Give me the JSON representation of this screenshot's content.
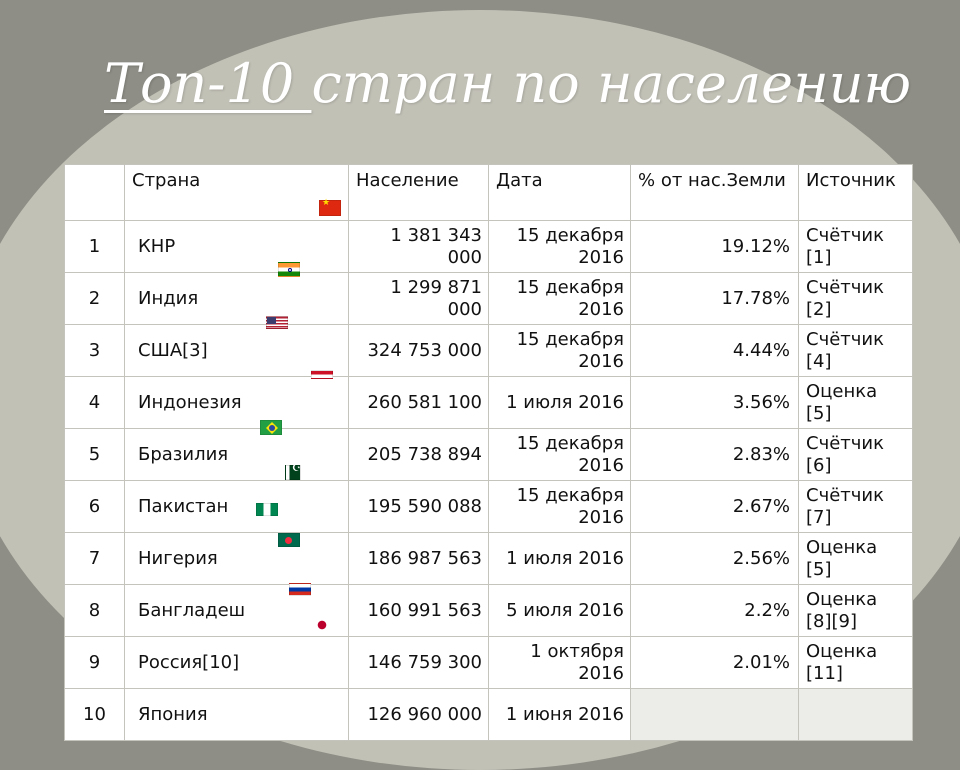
{
  "title": {
    "part1": "Топ-10 ",
    "part2": " стран по населению"
  },
  "table": {
    "headers": [
      "",
      "Страна",
      "Население",
      "Дата",
      "% от нас.Земли",
      "Источник"
    ],
    "rows": [
      {
        "num": "1",
        "country": "КНР",
        "population": "1 381 343 000",
        "date": "15 декабря 2016",
        "percent": "19.12%",
        "source": "Счётчик [1]"
      },
      {
        "num": "2",
        "country": "Индия",
        "population": "1 299 871 000",
        "date": "15 декабря 2016",
        "percent": "17.78%",
        "source": "Счётчик [2]"
      },
      {
        "num": "3",
        "country": "США[3]",
        "population": "324 753 000",
        "date": "15 декабря 2016",
        "percent": "4.44%",
        "source": "Счётчик [4]"
      },
      {
        "num": "4",
        "country": "Индонезия",
        "population": "260 581 100",
        "date": "1 июля 2016",
        "percent": "3.56%",
        "source": "Оценка [5]"
      },
      {
        "num": "5",
        "country": "Бразилия",
        "population": "205 738 894",
        "date": "15 декабря 2016",
        "percent": "2.83%",
        "source": "Счётчик [6]"
      },
      {
        "num": "6",
        "country": "Пакистан",
        "population": "195 590 088",
        "date": "15 декабря 2016",
        "percent": "2.67%",
        "source": "Счётчик [7]"
      },
      {
        "num": "7",
        "country": "Нигерия",
        "population": "186 987 563",
        "date": "1 июля 2016",
        "percent": "2.56%",
        "source": "Оценка [5]"
      },
      {
        "num": "8",
        "country": "Бангладеш",
        "population": "160 991 563",
        "date": "5 июля 2016",
        "percent": "2.2%",
        "source": "Оценка [8][9]"
      },
      {
        "num": "9",
        "country": "Россия[10]",
        "population": "146 759 300",
        "date": "1 октября 2016",
        "percent": "2.01%",
        "source": "Оценка [11]"
      },
      {
        "num": "10",
        "country": "Япония",
        "population": "126 960 000",
        "date": "1 июня 2016",
        "percent": "",
        "source": ""
      }
    ]
  },
  "flags": [
    "china-flag-icon",
    "india-flag-icon",
    "usa-flag-icon",
    "indonesia-flag-icon",
    "brazil-flag-icon",
    "pakistan-flag-icon",
    "nigeria-flag-icon",
    "bangladesh-flag-icon",
    "russia-flag-icon",
    "japan-flag-icon"
  ],
  "colors": {
    "background": "#8e8e86",
    "blob": "#c2c1b6",
    "title": "#ffffff",
    "table_bg": "#ffffff",
    "border": "#c4c4bc"
  }
}
